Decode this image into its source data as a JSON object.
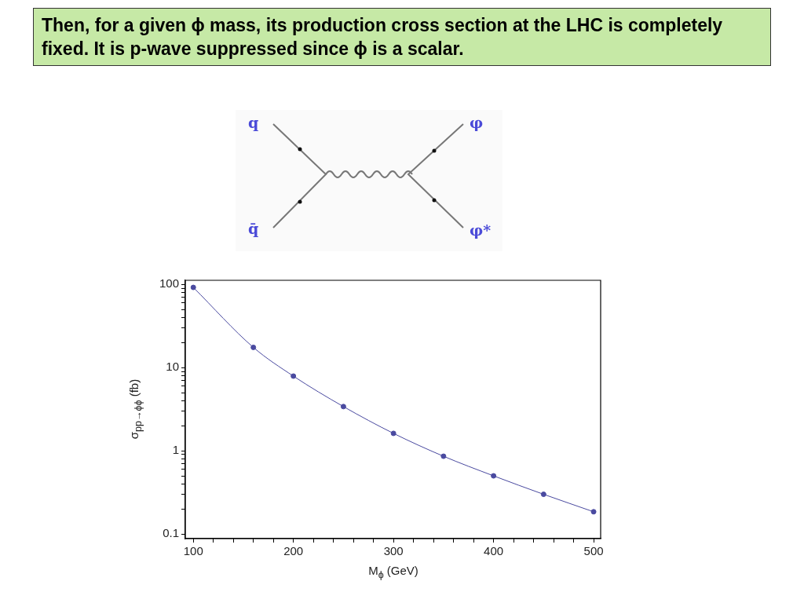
{
  "chart_data": {
    "type": "line",
    "title": "Then, for a given ϕ mass, its production cross section at the LHC is completely fixed. It is p-wave suppressed since ϕ is a scalar.",
    "xlabel": "M$_{ϕ}$ (GeV)",
    "ylabel": "σ$_{pp→ϕϕ}$ (fb)",
    "annotations": [
      "q",
      "q̄",
      "φ",
      "φ*"
    ],
    "x": [
      100,
      160,
      200,
      250,
      300,
      350,
      400,
      450,
      500
    ],
    "series": [
      {
        "color": "#4a4aa0",
        "values": [
          92,
          17.5,
          7.9,
          3.4,
          1.62,
          0.86,
          0.5,
          0.3,
          0.185
        ]
      }
    ],
    "xlim": [
      92,
      507
    ],
    "ylim": [
      0.088,
      112
    ],
    "log": "y",
    "xticks": [
      100,
      {
        "value": 120,
        "label": null
      },
      {
        "value": 140,
        "label": null
      },
      {
        "value": 160,
        "label": null
      },
      {
        "value": 180,
        "label": null
      },
      200,
      {
        "value": 220,
        "label": null
      },
      {
        "value": 240,
        "label": null
      },
      {
        "value": 260,
        "label": null
      },
      {
        "value": 280,
        "label": null
      },
      300,
      {
        "value": 320,
        "label": null
      },
      {
        "value": 340,
        "label": null
      },
      {
        "value": 360,
        "label": null
      },
      {
        "value": 380,
        "label": null
      },
      400,
      {
        "value": 420,
        "label": null
      },
      {
        "value": 440,
        "label": null
      },
      {
        "value": 460,
        "label": null
      },
      {
        "value": 480,
        "label": null
      },
      500
    ],
    "yticks": [
      0.1,
      {
        "value": 0.2,
        "label": null
      },
      {
        "value": 0.3,
        "label": null
      },
      {
        "value": 0.4,
        "label": null
      },
      {
        "value": 0.5,
        "label": null
      },
      {
        "value": 0.6,
        "label": null
      },
      {
        "value": 0.7,
        "label": null
      },
      {
        "value": 0.8,
        "label": null
      },
      {
        "value": 0.9,
        "label": null
      },
      1,
      {
        "value": 2,
        "label": null
      },
      {
        "value": 3,
        "label": null
      },
      {
        "value": 4,
        "label": null
      },
      {
        "value": 5,
        "label": null
      },
      {
        "value": 6,
        "label": null
      },
      {
        "value": 7,
        "label": null
      },
      {
        "value": 8,
        "label": null
      },
      {
        "value": 9,
        "label": null
      },
      10,
      {
        "value": 20,
        "label": null
      },
      {
        "value": 30,
        "label": null
      },
      {
        "value": 40,
        "label": null
      },
      {
        "value": 50,
        "label": null
      },
      {
        "value": 60,
        "label": null
      },
      {
        "value": 70,
        "label": null
      },
      {
        "value": 80,
        "label": null
      },
      {
        "value": 90,
        "label": null
      },
      100
    ],
    "grid": false,
    "legend": false,
    "marker": "circle",
    "line_style": "solid"
  }
}
